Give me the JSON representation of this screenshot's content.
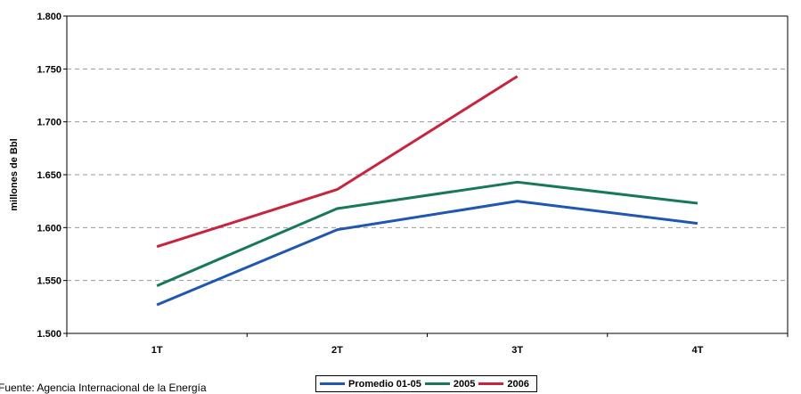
{
  "chart_data": {
    "type": "line",
    "categories": [
      "1T",
      "2T",
      "3T",
      "4T"
    ],
    "series": [
      {
        "name": "Promedio 01-05",
        "color": "#1f57b2",
        "values": [
          1527,
          1598,
          1625,
          1604
        ]
      },
      {
        "name": "2005",
        "color": "#17785a",
        "values": [
          1545,
          1618,
          1643,
          1623
        ]
      },
      {
        "name": "2006",
        "color": "#c8243e",
        "values": [
          1582,
          1636,
          1743,
          null
        ]
      }
    ],
    "ylabel": "millones de Bbl",
    "ylim": [
      1500,
      1800
    ],
    "ytick_values": [
      1500,
      1550,
      1600,
      1650,
      1700,
      1750,
      1800
    ],
    "ytick_labels": [
      "1.500",
      "1.550",
      "1.600",
      "1.650",
      "1.700",
      "1.750",
      "1.800"
    ],
    "grid": "horizontal dashed",
    "legend_position": "bottom"
  },
  "source_note": "Fuente: Agencia Internacional de la Energía"
}
